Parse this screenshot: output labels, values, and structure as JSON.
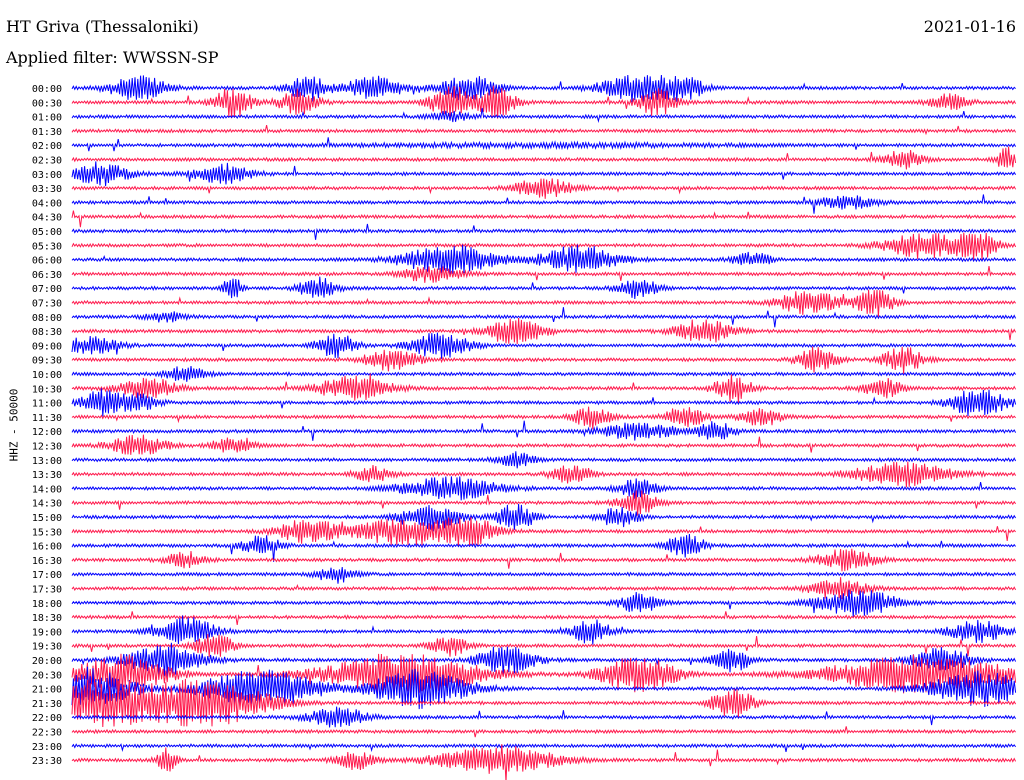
{
  "header": {
    "station": "HT Griva (Thessaloniki)",
    "date": "2021-01-16",
    "filter": "Applied filter: WWSSN-SP"
  },
  "chart_data": {
    "type": "line",
    "title": "HT Griva (Thessaloniki)",
    "ylabel": "HHZ - 50000",
    "colors": [
      "#0000ff",
      "#ff1a4d"
    ],
    "tick_labels": [
      "00:00",
      "00:30",
      "01:00",
      "01:30",
      "02:00",
      "02:30",
      "03:00",
      "03:30",
      "04:00",
      "04:30",
      "05:00",
      "05:30",
      "06:00",
      "06:30",
      "07:00",
      "07:30",
      "08:00",
      "08:30",
      "09:00",
      "09:30",
      "10:00",
      "10:30",
      "11:00",
      "11:30",
      "12:00",
      "12:30",
      "13:00",
      "13:30",
      "14:00",
      "14:30",
      "15:00",
      "15:30",
      "16:00",
      "16:30",
      "17:00",
      "17:30",
      "18:00",
      "18:30",
      "19:00",
      "19:30",
      "20:00",
      "20:30",
      "21:00",
      "21:30",
      "22:00",
      "22:30",
      "23:00",
      "23:30"
    ],
    "bursts": [
      [
        [
          0.07,
          0.03,
          1.5
        ],
        [
          0.25,
          0.02,
          1.6
        ],
        [
          0.32,
          0.03,
          1.4
        ],
        [
          0.42,
          0.03,
          1.5
        ],
        [
          0.6,
          0.04,
          1.8
        ],
        [
          0.65,
          0.02,
          1.2
        ]
      ],
      [
        [
          0.17,
          0.02,
          1.8
        ],
        [
          0.24,
          0.02,
          1.6
        ],
        [
          0.4,
          0.02,
          2.2
        ],
        [
          0.45,
          0.02,
          2.0
        ],
        [
          0.62,
          0.02,
          1.7
        ],
        [
          0.93,
          0.02,
          1.0
        ]
      ],
      [
        [
          0.4,
          0.02,
          0.6
        ]
      ],
      [],
      [
        [
          0.5,
          0.2,
          0.2
        ]
      ],
      [
        [
          0.88,
          0.02,
          1.3
        ],
        [
          0.99,
          0.01,
          1.5
        ]
      ],
      [
        [
          0.03,
          0.03,
          1.4
        ],
        [
          0.16,
          0.03,
          1.2
        ]
      ],
      [
        [
          0.5,
          0.03,
          1.2
        ]
      ],
      [
        [
          0.82,
          0.03,
          0.8
        ]
      ],
      [],
      [],
      [
        [
          0.9,
          0.04,
          1.6
        ],
        [
          0.96,
          0.02,
          1.8
        ]
      ],
      [
        [
          0.4,
          0.05,
          1.8
        ],
        [
          0.54,
          0.04,
          1.8
        ],
        [
          0.72,
          0.02,
          0.9
        ]
      ],
      [
        [
          0.38,
          0.03,
          1.0
        ]
      ],
      [
        [
          0.17,
          0.01,
          1.4
        ],
        [
          0.26,
          0.02,
          1.3
        ],
        [
          0.6,
          0.02,
          1.2
        ]
      ],
      [
        [
          0.78,
          0.03,
          1.5
        ],
        [
          0.85,
          0.02,
          1.7
        ]
      ],
      [
        [
          0.1,
          0.02,
          0.6
        ]
      ],
      [
        [
          0.47,
          0.03,
          1.5
        ],
        [
          0.67,
          0.03,
          1.5
        ]
      ],
      [
        [
          0.02,
          0.03,
          1.0
        ],
        [
          0.28,
          0.02,
          1.5
        ],
        [
          0.39,
          0.03,
          1.6
        ]
      ],
      [
        [
          0.34,
          0.03,
          1.3
        ],
        [
          0.79,
          0.02,
          1.6
        ],
        [
          0.88,
          0.02,
          1.8
        ]
      ],
      [
        [
          0.12,
          0.02,
          1.0
        ]
      ],
      [
        [
          0.08,
          0.03,
          1.3
        ],
        [
          0.3,
          0.04,
          1.5
        ],
        [
          0.7,
          0.02,
          1.6
        ],
        [
          0.86,
          0.02,
          1.2
        ]
      ],
      [
        [
          0.03,
          0.02,
          1.6
        ],
        [
          0.07,
          0.02,
          1.2
        ],
        [
          0.96,
          0.03,
          1.7
        ]
      ],
      [
        [
          0.55,
          0.02,
          1.2
        ],
        [
          0.65,
          0.02,
          1.4
        ],
        [
          0.73,
          0.02,
          1.2
        ]
      ],
      [
        [
          0.6,
          0.04,
          1.0
        ],
        [
          0.68,
          0.02,
          1.2
        ]
      ],
      [
        [
          0.07,
          0.03,
          1.2
        ],
        [
          0.17,
          0.02,
          0.9
        ]
      ],
      [
        [
          0.47,
          0.02,
          0.9
        ]
      ],
      [
        [
          0.32,
          0.02,
          1.0
        ],
        [
          0.53,
          0.02,
          1.2
        ],
        [
          0.88,
          0.05,
          1.5
        ]
      ],
      [
        [
          0.4,
          0.05,
          1.4
        ],
        [
          0.6,
          0.02,
          1.2
        ]
      ],
      [
        [
          0.6,
          0.02,
          1.5
        ]
      ],
      [
        [
          0.38,
          0.03,
          1.6
        ],
        [
          0.47,
          0.02,
          1.6
        ],
        [
          0.58,
          0.02,
          1.3
        ]
      ],
      [
        [
          0.25,
          0.03,
          1.5
        ],
        [
          0.35,
          0.05,
          1.7
        ],
        [
          0.42,
          0.03,
          1.7
        ]
      ],
      [
        [
          0.2,
          0.02,
          1.2
        ],
        [
          0.65,
          0.02,
          1.4
        ]
      ],
      [
        [
          0.12,
          0.02,
          1.0
        ],
        [
          0.82,
          0.03,
          1.3
        ]
      ],
      [
        [
          0.28,
          0.02,
          1.0
        ]
      ],
      [
        [
          0.81,
          0.03,
          1.3
        ]
      ],
      [
        [
          0.6,
          0.02,
          1.3
        ],
        [
          0.83,
          0.04,
          1.8
        ]
      ],
      [],
      [
        [
          0.12,
          0.03,
          1.8
        ],
        [
          0.55,
          0.02,
          1.5
        ],
        [
          0.96,
          0.03,
          1.3
        ]
      ],
      [
        [
          0.15,
          0.02,
          1.6
        ],
        [
          0.4,
          0.02,
          1.2
        ]
      ],
      [
        [
          0.1,
          0.04,
          2.0
        ],
        [
          0.46,
          0.03,
          1.8
        ],
        [
          0.7,
          0.02,
          1.4
        ],
        [
          0.92,
          0.03,
          1.5
        ]
      ],
      [
        [
          0.05,
          0.05,
          2.4
        ],
        [
          0.35,
          0.08,
          2.6
        ],
        [
          0.6,
          0.04,
          2.2
        ],
        [
          0.9,
          0.1,
          2.3
        ]
      ],
      [
        [
          0.01,
          0.05,
          2.6
        ],
        [
          0.2,
          0.06,
          2.4
        ],
        [
          0.37,
          0.05,
          2.4
        ],
        [
          0.96,
          0.05,
          2.2
        ]
      ],
      [
        [
          0.03,
          0.08,
          2.8
        ],
        [
          0.15,
          0.06,
          2.6
        ],
        [
          0.7,
          0.02,
          2.2
        ]
      ],
      [
        [
          0.28,
          0.03,
          1.3
        ]
      ],
      [],
      [],
      [
        [
          0.45,
          0.06,
          1.8
        ],
        [
          0.1,
          0.01,
          1.6
        ],
        [
          0.3,
          0.02,
          1.2
        ]
      ]
    ]
  }
}
